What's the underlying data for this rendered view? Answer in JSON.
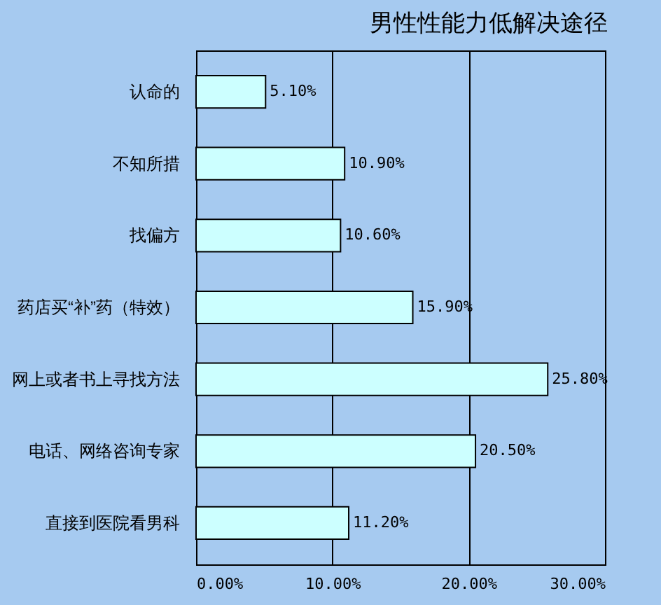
{
  "chart_data": {
    "type": "bar",
    "orientation": "horizontal",
    "title": "男性性能力低解决途径",
    "categories": [
      "认命的",
      "不知所措",
      "找偏方",
      "药店买“补”药（特效）",
      "网上或者书上寻找方法",
      "电话、网络咨询专家",
      "直接到医院看男科"
    ],
    "values": [
      5.1,
      10.9,
      10.6,
      15.9,
      25.8,
      20.5,
      11.2
    ],
    "value_labels": [
      "5.10%",
      "10.90%",
      "10.60%",
      "15.90%",
      "25.80%",
      "20.50%",
      "11.20%"
    ],
    "color": "#ccffff",
    "xlim": [
      0,
      30
    ],
    "xticks": [
      {
        "value": 0,
        "label": "0.00%"
      },
      {
        "value": 10,
        "label": "10.00%"
      },
      {
        "value": 20,
        "label": "20.00%"
      },
      {
        "value": 30,
        "label": "30.00%"
      }
    ],
    "grid": "x"
  }
}
